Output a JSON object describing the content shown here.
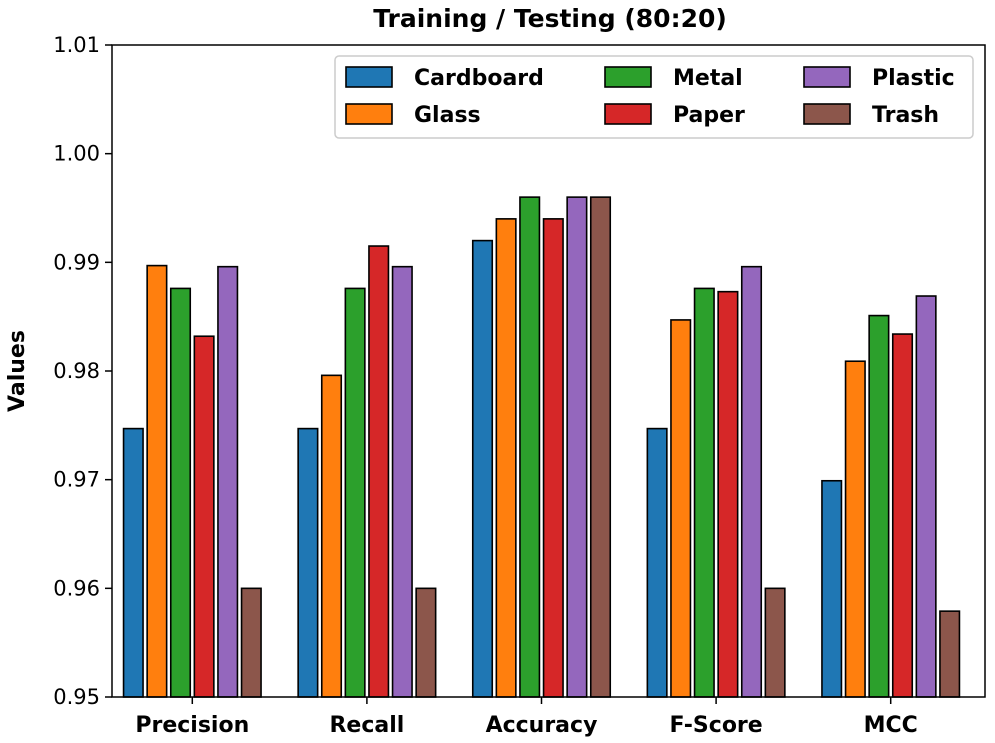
{
  "chart_data": {
    "type": "bar",
    "title": "Training / Testing (80:20)",
    "xlabel": "",
    "ylabel": "Values",
    "ylim": [
      0.95,
      1.01
    ],
    "yticks": [
      "0.95",
      "0.96",
      "0.97",
      "0.98",
      "0.99",
      "1.00",
      "1.01"
    ],
    "categories": [
      "Precision",
      "Recall",
      "Accuracy",
      "F-Score",
      "MCC"
    ],
    "legend_position": "top-right",
    "series": [
      {
        "name": "Cardboard",
        "color": "#1f77b4",
        "values": [
          0.9747,
          0.9747,
          0.992,
          0.9747,
          0.9699
        ]
      },
      {
        "name": "Glass",
        "color": "#ff7f0e",
        "values": [
          0.9897,
          0.9796,
          0.994,
          0.9847,
          0.9809
        ]
      },
      {
        "name": "Metal",
        "color": "#2ca02c",
        "values": [
          0.9876,
          0.9876,
          0.996,
          0.9876,
          0.9851
        ]
      },
      {
        "name": "Paper",
        "color": "#d62728",
        "values": [
          0.9832,
          0.9915,
          0.994,
          0.9873,
          0.9834
        ]
      },
      {
        "name": "Plastic",
        "color": "#9467bd",
        "values": [
          0.9896,
          0.9896,
          0.996,
          0.9896,
          0.9869
        ]
      },
      {
        "name": "Trash",
        "color": "#8c564b",
        "values": [
          0.96,
          0.96,
          0.996,
          0.96,
          0.9579
        ]
      }
    ]
  }
}
